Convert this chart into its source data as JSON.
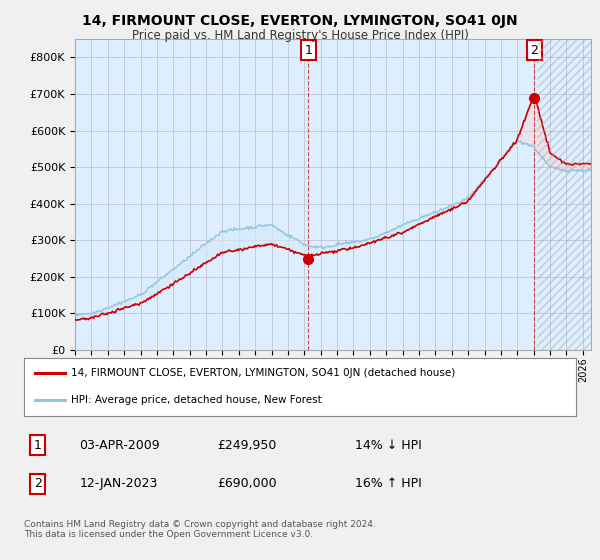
{
  "title": "14, FIRMOUNT CLOSE, EVERTON, LYMINGTON, SO41 0JN",
  "subtitle": "Price paid vs. HM Land Registry's House Price Index (HPI)",
  "ylabel_ticks": [
    "£0",
    "£100K",
    "£200K",
    "£300K",
    "£400K",
    "£500K",
    "£600K",
    "£700K",
    "£800K"
  ],
  "ylim": [
    0,
    850000
  ],
  "xlim_start": 1995.0,
  "xlim_end": 2026.5,
  "sale1_date": 2009.25,
  "sale1_price": 249950,
  "sale2_date": 2023.04,
  "sale2_price": 690000,
  "hpi_color": "#91c4e0",
  "hpi_fill_color": "#d6eaf8",
  "property_color": "#cc0000",
  "sale_marker_color": "#cc0000",
  "legend_property": "14, FIRMOUNT CLOSE, EVERTON, LYMINGTON, SO41 0JN (detached house)",
  "legend_hpi": "HPI: Average price, detached house, New Forest",
  "table_row1": [
    "1",
    "03-APR-2009",
    "£249,950",
    "14% ↓ HPI"
  ],
  "table_row2": [
    "2",
    "12-JAN-2023",
    "£690,000",
    "16% ↑ HPI"
  ],
  "footnote": "Contains HM Land Registry data © Crown copyright and database right 2024.\nThis data is licensed under the Open Government Licence v3.0.",
  "background_color": "#f0f0f0",
  "plot_bg_color": "#ddeeff",
  "grid_color": "#bbbbcc"
}
